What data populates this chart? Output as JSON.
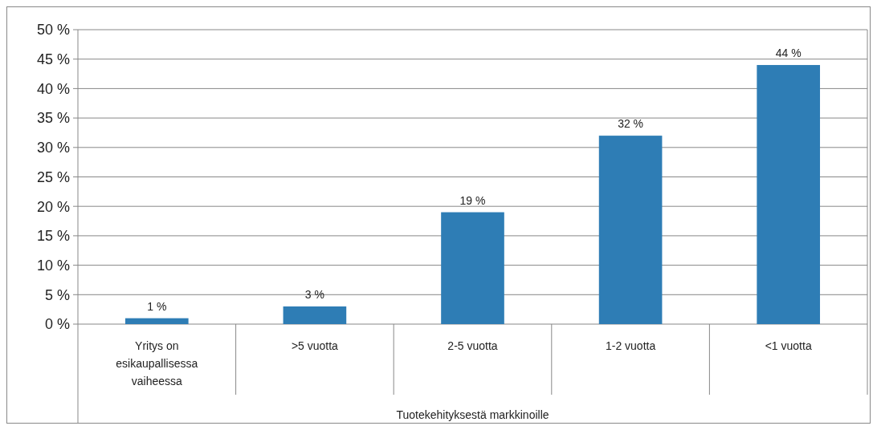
{
  "chart_data": {
    "type": "bar",
    "xlabel": "Tuotekehityksestä markkinoille",
    "categories": [
      "Yritys on esikaupallisessa vaiheessa",
      ">5 vuotta",
      "2-5 vuotta",
      "1-2 vuotta",
      "<1 vuotta"
    ],
    "values": [
      1,
      3,
      19,
      32,
      44
    ],
    "value_labels": [
      "1 %",
      "3 %",
      "19 %",
      "32 %",
      "44 %"
    ],
    "color": "#2e7db5",
    "ylim": [
      0,
      50
    ],
    "yticks": [
      {
        "value": 0,
        "label": "0 %"
      },
      {
        "value": 5,
        "label": "5 %"
      },
      {
        "value": 10,
        "label": "10 %"
      },
      {
        "value": 15,
        "label": "15 %"
      },
      {
        "value": 20,
        "label": "20 %"
      },
      {
        "value": 25,
        "label": "25 %"
      },
      {
        "value": 30,
        "label": "30 %"
      },
      {
        "value": 35,
        "label": "35 %"
      },
      {
        "value": 40,
        "label": "40 %"
      },
      {
        "value": 45,
        "label": "45 %"
      },
      {
        "value": 50,
        "label": "50 %"
      }
    ],
    "grid": "y"
  }
}
